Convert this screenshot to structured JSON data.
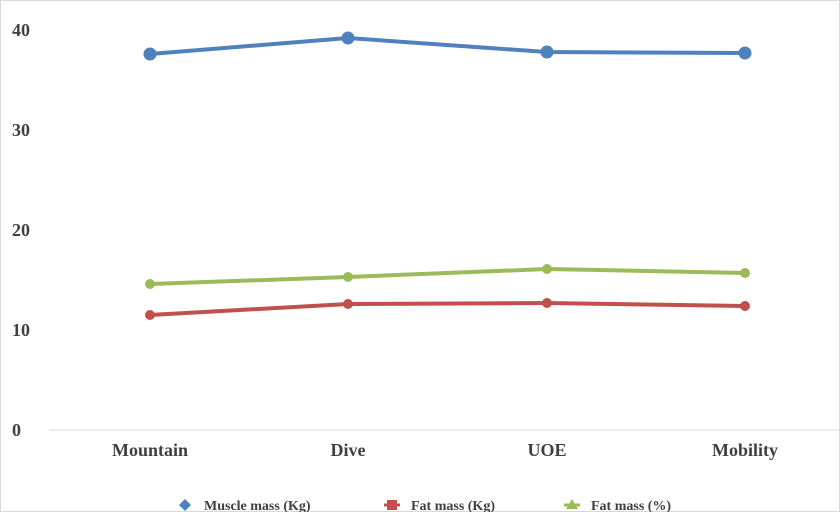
{
  "chart_data": {
    "type": "line",
    "categories": [
      "Mountain",
      "Dive",
      "UOE",
      "Mobility"
    ],
    "series": [
      {
        "name": "Muscle mass (Kg)",
        "values": [
          37.6,
          39.2,
          37.8,
          37.7
        ],
        "color": "#4F81BD",
        "marker": "diamond"
      },
      {
        "name": "Fat mass (Kg)",
        "values": [
          11.5,
          12.6,
          12.7,
          12.4
        ],
        "color": "#C0504D",
        "marker": "square"
      },
      {
        "name": "Fat mass (%)",
        "values": [
          14.6,
          15.3,
          16.1,
          15.7
        ],
        "color": "#9BBB59",
        "marker": "triangle"
      }
    ],
    "yticks": [
      "0",
      "10",
      "20",
      "30",
      "40"
    ],
    "ylim": [
      0,
      40
    ],
    "grid": false,
    "legend_position": "bottom"
  }
}
